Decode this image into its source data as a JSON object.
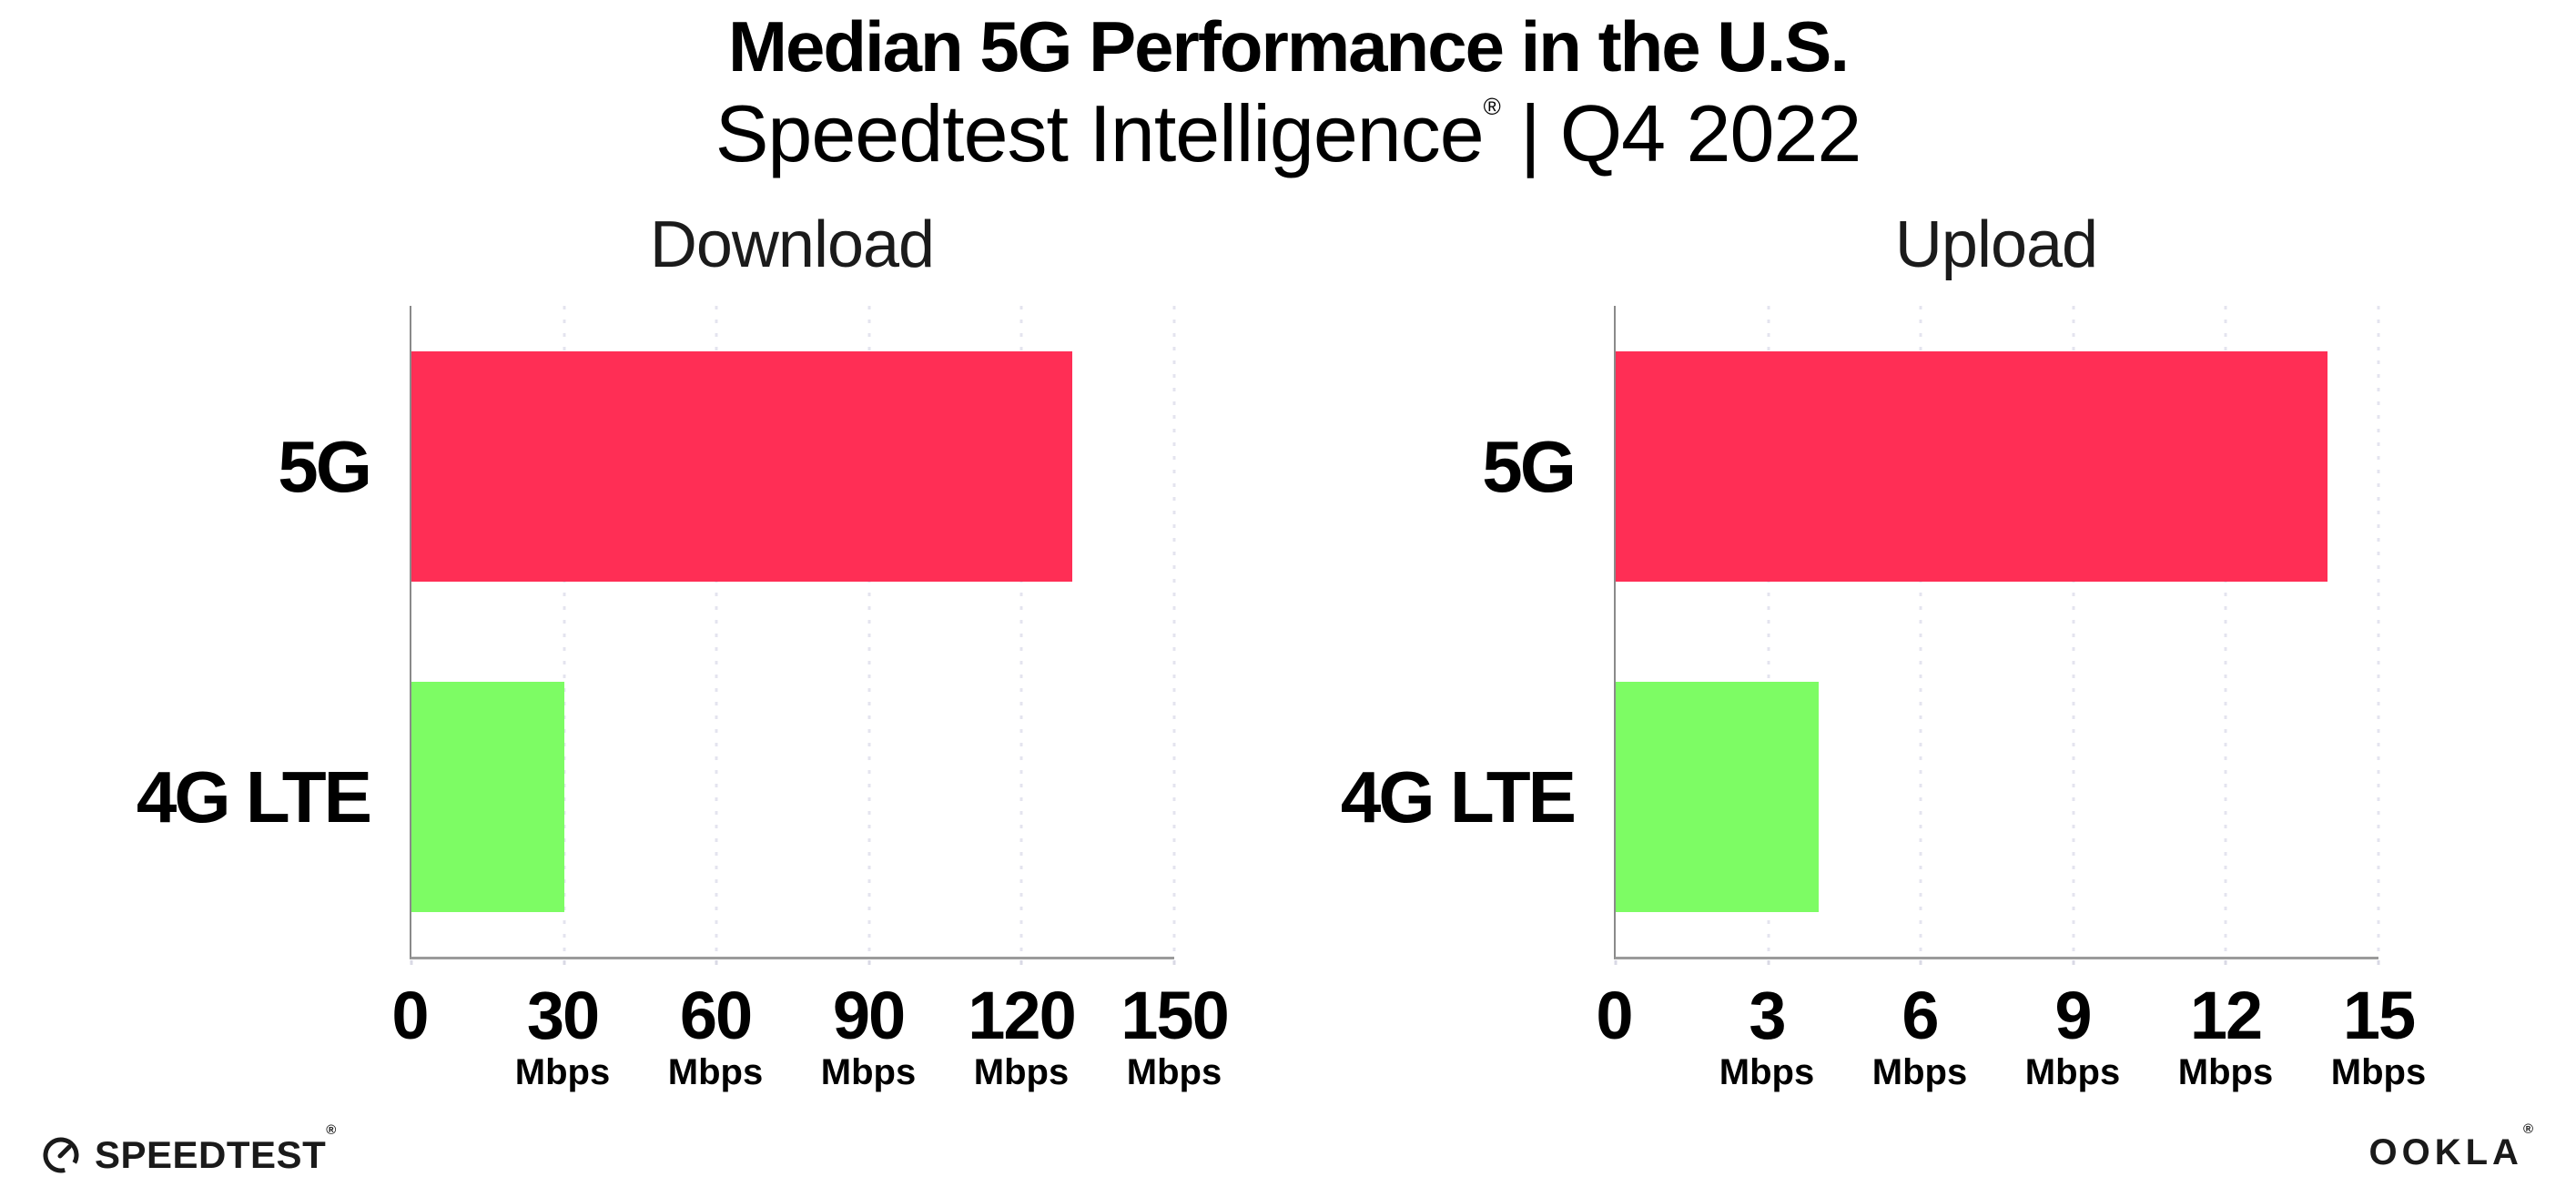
{
  "header": {
    "title": "Median 5G Performance in the U.S.",
    "subtitle_product": "Speedtest Intelligence",
    "subtitle_reg": "®",
    "subtitle_divider": "|",
    "subtitle_period": "Q4 2022"
  },
  "colors": {
    "bar_5g_pink": "#FF2E55",
    "bar_4g_green": "#7DFC64",
    "gridline": "#E4E4EF",
    "x_axis_line": "#9B9B9B",
    "y_axis_line": "#8A8A8A"
  },
  "chart_data": [
    {
      "type": "bar",
      "orientation": "horizontal",
      "title": "Download",
      "categories": [
        "5G",
        "4G LTE"
      ],
      "values": [
        130,
        30
      ],
      "unit": "Mbps",
      "xlim": [
        0,
        150
      ],
      "xticks": [
        0,
        30,
        60,
        90,
        120,
        150
      ],
      "tick_labels": [
        {
          "num": "0",
          "unit": ""
        },
        {
          "num": "30",
          "unit": "Mbps"
        },
        {
          "num": "60",
          "unit": "Mbps"
        },
        {
          "num": "90",
          "unit": "Mbps"
        },
        {
          "num": "120",
          "unit": "Mbps"
        },
        {
          "num": "150",
          "unit": "Mbps"
        }
      ],
      "bar_colors": [
        "#FF2E55",
        "#7DFC64"
      ],
      "grid": "dotted-vertical",
      "legend": "none"
    },
    {
      "type": "bar",
      "orientation": "horizontal",
      "title": "Upload",
      "categories": [
        "5G",
        "4G LTE"
      ],
      "values": [
        14,
        4
      ],
      "unit": "Mbps",
      "xlim": [
        0,
        15
      ],
      "xticks": [
        0,
        3,
        6,
        9,
        12,
        15
      ],
      "tick_labels": [
        {
          "num": "0",
          "unit": ""
        },
        {
          "num": "3",
          "unit": "Mbps"
        },
        {
          "num": "6",
          "unit": "Mbps"
        },
        {
          "num": "9",
          "unit": "Mbps"
        },
        {
          "num": "12",
          "unit": "Mbps"
        },
        {
          "num": "15",
          "unit": "Mbps"
        }
      ],
      "bar_colors": [
        "#FF2E55",
        "#7DFC64"
      ],
      "grid": "dotted-vertical",
      "legend": "none"
    }
  ],
  "footer": {
    "speedtest": "SPEEDTEST",
    "speedtest_reg": "®",
    "ookla": "OOKLA",
    "ookla_reg": "®"
  }
}
